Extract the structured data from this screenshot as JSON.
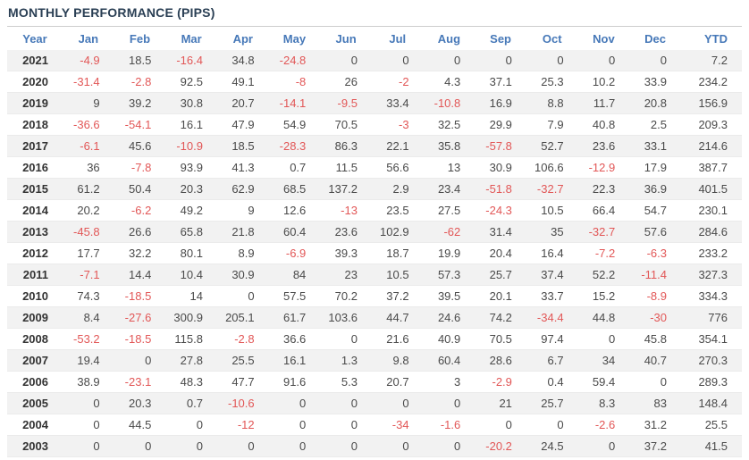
{
  "title": "MONTHLY PERFORMANCE (PIPS)",
  "colors": {
    "title_text": "#2a3f54",
    "header_text": "#4678b8",
    "positive_text": "#4a4a4a",
    "negative_text": "#e25757",
    "year_text": "#333333",
    "stripe_bg": "#f2f2f2",
    "divider_line": "#cccccc",
    "row_border": "#ebebeb"
  },
  "table": {
    "columns": [
      "Year",
      "Jan",
      "Feb",
      "Mar",
      "Apr",
      "May",
      "Jun",
      "Jul",
      "Aug",
      "Sep",
      "Oct",
      "Nov",
      "Dec",
      "YTD"
    ],
    "rows": [
      {
        "year": "2021",
        "values": [
          -4.9,
          18.5,
          -16.4,
          34.8,
          -24.8,
          0,
          0,
          0,
          0,
          0,
          0,
          0,
          7.2
        ]
      },
      {
        "year": "2020",
        "values": [
          -31.4,
          -2.8,
          92.5,
          49.1,
          -8,
          26,
          -2,
          4.3,
          37.1,
          25.3,
          10.2,
          33.9,
          234.2
        ]
      },
      {
        "year": "2019",
        "values": [
          9,
          39.2,
          30.8,
          20.7,
          -14.1,
          -9.5,
          33.4,
          -10.8,
          16.9,
          8.8,
          11.7,
          20.8,
          156.9
        ]
      },
      {
        "year": "2018",
        "values": [
          -36.6,
          -54.1,
          16.1,
          47.9,
          54.9,
          70.5,
          -3,
          32.5,
          29.9,
          7.9,
          40.8,
          2.5,
          209.3
        ]
      },
      {
        "year": "2017",
        "values": [
          -6.1,
          45.6,
          -10.9,
          18.5,
          -28.3,
          86.3,
          22.1,
          35.8,
          -57.8,
          52.7,
          23.6,
          33.1,
          214.6
        ]
      },
      {
        "year": "2016",
        "values": [
          36,
          -7.8,
          93.9,
          41.3,
          0.7,
          11.5,
          56.6,
          13,
          30.9,
          106.6,
          -12.9,
          17.9,
          387.7
        ]
      },
      {
        "year": "2015",
        "values": [
          61.2,
          50.4,
          20.3,
          62.9,
          68.5,
          137.2,
          2.9,
          23.4,
          -51.8,
          -32.7,
          22.3,
          36.9,
          401.5
        ]
      },
      {
        "year": "2014",
        "values": [
          20.2,
          -6.2,
          49.2,
          9,
          12.6,
          -13,
          23.5,
          27.5,
          -24.3,
          10.5,
          66.4,
          54.7,
          230.1
        ]
      },
      {
        "year": "2013",
        "values": [
          -45.8,
          26.6,
          65.8,
          21.8,
          60.4,
          23.6,
          102.9,
          -62,
          31.4,
          35,
          -32.7,
          57.6,
          284.6
        ]
      },
      {
        "year": "2012",
        "values": [
          17.7,
          32.2,
          80.1,
          8.9,
          -6.9,
          39.3,
          18.7,
          19.9,
          20.4,
          16.4,
          -7.2,
          -6.3,
          233.2
        ]
      },
      {
        "year": "2011",
        "values": [
          -7.1,
          14.4,
          10.4,
          30.9,
          84,
          23,
          10.5,
          57.3,
          25.7,
          37.4,
          52.2,
          -11.4,
          327.3
        ]
      },
      {
        "year": "2010",
        "values": [
          74.3,
          -18.5,
          14,
          0,
          57.5,
          70.2,
          37.2,
          39.5,
          20.1,
          33.7,
          15.2,
          -8.9,
          334.3
        ]
      },
      {
        "year": "2009",
        "values": [
          8.4,
          -27.6,
          300.9,
          205.1,
          61.7,
          103.6,
          44.7,
          24.6,
          74.2,
          -34.4,
          44.8,
          -30,
          776
        ]
      },
      {
        "year": "2008",
        "values": [
          -53.2,
          -18.5,
          115.8,
          -2.8,
          36.6,
          0,
          21.6,
          40.9,
          70.5,
          97.4,
          0,
          45.8,
          354.1
        ]
      },
      {
        "year": "2007",
        "values": [
          19.4,
          0,
          27.8,
          25.5,
          16.1,
          1.3,
          9.8,
          60.4,
          28.6,
          6.7,
          34,
          40.7,
          270.3
        ]
      },
      {
        "year": "2006",
        "values": [
          38.9,
          -23.1,
          48.3,
          47.7,
          91.6,
          5.3,
          20.7,
          3,
          -2.9,
          0.4,
          59.4,
          0,
          289.3
        ]
      },
      {
        "year": "2005",
        "values": [
          0,
          20.3,
          0.7,
          -10.6,
          0,
          0,
          0,
          0,
          21,
          25.7,
          8.3,
          83,
          148.4
        ]
      },
      {
        "year": "2004",
        "values": [
          0,
          44.5,
          0,
          -12,
          0,
          0,
          -34,
          -1.6,
          0,
          0,
          -2.6,
          31.2,
          25.5
        ]
      },
      {
        "year": "2003",
        "values": [
          0,
          0,
          0,
          0,
          0,
          0,
          0,
          0,
          -20.2,
          24.5,
          0,
          37.2,
          41.5
        ]
      }
    ]
  }
}
